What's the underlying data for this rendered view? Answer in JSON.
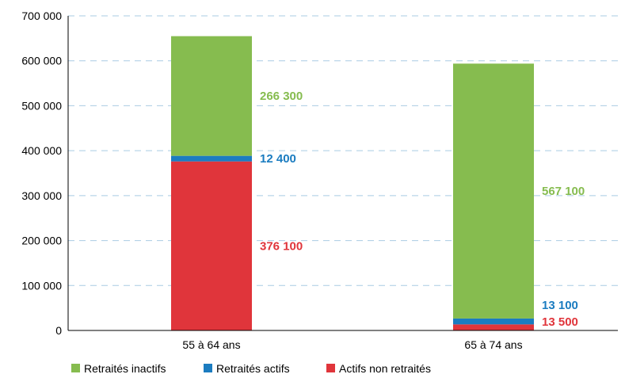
{
  "chart_data": {
    "type": "bar",
    "stacked": true,
    "categories": [
      "55 à 64 ans",
      "65 à 74 ans"
    ],
    "series": [
      {
        "name": "Actifs non retraités",
        "values": [
          376100,
          13500
        ],
        "labels": [
          "376 100",
          "13 500"
        ],
        "color": "#E0353B"
      },
      {
        "name": "Retraités actifs",
        "values": [
          12400,
          13100
        ],
        "labels": [
          "12 400",
          "13 100"
        ],
        "color": "#1B7CC0"
      },
      {
        "name": "Retraités inactifs",
        "values": [
          266300,
          567100
        ],
        "labels": [
          "266 300",
          "567 100"
        ],
        "color": "#86BC4F"
      }
    ],
    "legend_order": [
      "Retraités inactifs",
      "Retraités actifs",
      "Actifs non retraités"
    ],
    "y_ticks": [
      0,
      100000,
      200000,
      300000,
      400000,
      500000,
      600000,
      700000
    ],
    "y_tick_labels": [
      "0",
      "100 000",
      "200 000",
      "300 000",
      "400 000",
      "500 000",
      "600 000",
      "700 000"
    ],
    "ylim": [
      0,
      700000
    ],
    "grid": true,
    "legend_position": "bottom-left",
    "title": "",
    "xlabel": "",
    "ylabel": ""
  }
}
